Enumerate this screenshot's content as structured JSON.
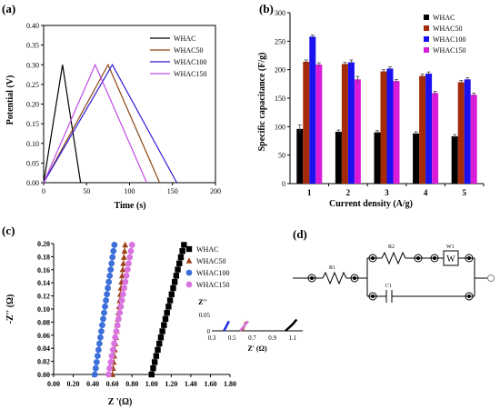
{
  "chart_data": [
    {
      "id": "a",
      "panel_label": "(a)",
      "type": "line",
      "xlabel": "Time (s)",
      "ylabel": "Potential (V)",
      "xlim": [
        0,
        200
      ],
      "ylim": [
        0,
        0.4
      ],
      "xticks": [
        "0",
        "50",
        "100",
        "150",
        "200"
      ],
      "yticks": [
        "0.00",
        "0.05",
        "0.10",
        "0.15",
        "0.20",
        "0.25",
        "0.30",
        "0.35",
        "0.40"
      ],
      "legend_position": "top-right",
      "series": [
        {
          "name": "WHAC",
          "color": "#000000",
          "points": [
            [
              0,
              0
            ],
            [
              22,
              0.3
            ],
            [
              43,
              0
            ]
          ]
        },
        {
          "name": "WHAC50",
          "color": "#8B4513",
          "points": [
            [
              0,
              0
            ],
            [
              75,
              0.3
            ],
            [
              135,
              0
            ]
          ]
        },
        {
          "name": "WHAC100",
          "color": "#2E1AD6",
          "points": [
            [
              0,
              0
            ],
            [
              80,
              0.3
            ],
            [
              155,
              0
            ]
          ]
        },
        {
          "name": "WHAC150",
          "color": "#C04BE8",
          "points": [
            [
              0,
              0
            ],
            [
              60,
              0.3
            ],
            [
              120,
              0
            ]
          ]
        }
      ]
    },
    {
      "id": "b",
      "panel_label": "(b)",
      "type": "bar",
      "xlabel": "Current density (A/g)",
      "ylabel": "Specific capacitance (F/g)",
      "ylim": [
        0,
        300
      ],
      "yticks": [
        "0",
        "50",
        "100",
        "150",
        "200",
        "250",
        "300"
      ],
      "categories": [
        "1",
        "2",
        "3",
        "4",
        "5"
      ],
      "legend_position": "top-right",
      "series": [
        {
          "name": "WHAC",
          "color": "#000000",
          "values": [
            96,
            91,
            90,
            88,
            83
          ],
          "errors": [
            7,
            3,
            3,
            3,
            3
          ]
        },
        {
          "name": "WHAC50",
          "color": "#A52A0A",
          "values": [
            214,
            210,
            197,
            189,
            178
          ],
          "errors": [
            3,
            3,
            3,
            3,
            3
          ]
        },
        {
          "name": "WHAC100",
          "color": "#1A10F0",
          "values": [
            258,
            213,
            202,
            193,
            183
          ],
          "errors": [
            3,
            4,
            3,
            3,
            3
          ]
        },
        {
          "name": "WHAC150",
          "color": "#D81CD8",
          "values": [
            209,
            183,
            180,
            159,
            156
          ],
          "errors": [
            3,
            5,
            3,
            3,
            3
          ]
        }
      ]
    },
    {
      "id": "c",
      "panel_label": "(c)",
      "type": "scatter",
      "xlabel": "Z '(Ω)",
      "ylabel": "-Z'' (Ω)",
      "xlim": [
        0,
        1.8
      ],
      "ylim": [
        0,
        0.2
      ],
      "xticks": [
        "0.00",
        "0.20",
        "0.40",
        "0.60",
        "0.80",
        "1.00",
        "1.20",
        "1.40",
        "1.60",
        "1.80"
      ],
      "yticks": [
        "0.00",
        "0.02",
        "0.04",
        "0.06",
        "0.08",
        "0.10",
        "0.12",
        "0.14",
        "0.16",
        "0.18",
        "0.20"
      ],
      "legend_position": "top-right",
      "series": [
        {
          "name": "WHAC",
          "color": "#000000",
          "marker": "square",
          "x_start": 1.0,
          "x_end": 1.33,
          "y_start": 0.0,
          "y_end": 0.198
        },
        {
          "name": "WHAC50",
          "color": "#A0421A",
          "marker": "triangle",
          "x_start": 0.6,
          "x_end": 0.73,
          "y_start": 0.0,
          "y_end": 0.198
        },
        {
          "name": "WHAC100",
          "color": "#3C6FD8",
          "marker": "circle",
          "x_start": 0.42,
          "x_end": 0.62,
          "y_start": 0.0,
          "y_end": 0.198
        },
        {
          "name": "WHAC150",
          "color": "#D873E0",
          "marker": "circle",
          "x_start": 0.56,
          "x_end": 0.8,
          "y_start": 0.0,
          "y_end": 0.198
        }
      ],
      "inset": {
        "xlabel": "Z' (Ω)",
        "ylabel": "Z''",
        "xlim": [
          0.3,
          1.2
        ],
        "ylim": [
          0,
          0.07
        ],
        "xticks": [
          "0.3",
          "0.5",
          "0.7",
          "0.9",
          "1.1"
        ],
        "yticks": [
          "0",
          "0.05"
        ],
        "series": [
          {
            "name": "WHAC",
            "color": "#000000",
            "points": [
              [
                1.03,
                0
              ],
              [
                1.1,
                0.02
              ],
              [
                1.14,
                0.035
              ]
            ]
          },
          {
            "name": "WHAC50",
            "color": "#A0421A",
            "points": [
              [
                0.6,
                0
              ],
              [
                0.64,
                0.028
              ]
            ]
          },
          {
            "name": "WHAC100",
            "color": "#1A30E0",
            "points": [
              [
                0.42,
                0
              ],
              [
                0.47,
                0.03
              ]
            ]
          },
          {
            "name": "WHAC150",
            "color": "#D873E0",
            "points": [
              [
                0.58,
                0
              ],
              [
                0.66,
                0.03
              ]
            ]
          }
        ]
      }
    }
  ],
  "circuit": {
    "panel_label": "(d)",
    "labels": {
      "r1": "R1",
      "r2": "R2",
      "w1": "W1",
      "c1": "C1"
    }
  }
}
